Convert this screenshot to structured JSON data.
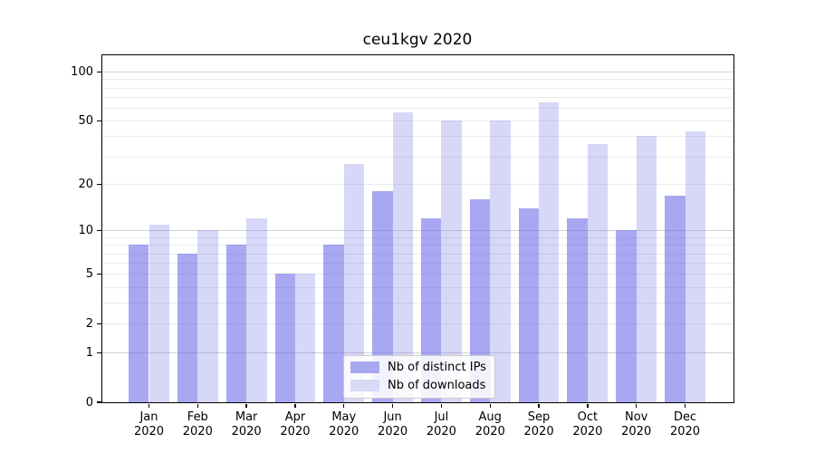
{
  "chart_data": {
    "type": "bar",
    "title": "ceu1kgv 2020",
    "categories": [
      {
        "month": "Jan",
        "year": "2020"
      },
      {
        "month": "Feb",
        "year": "2020"
      },
      {
        "month": "Mar",
        "year": "2020"
      },
      {
        "month": "Apr",
        "year": "2020"
      },
      {
        "month": "May",
        "year": "2020"
      },
      {
        "month": "Jun",
        "year": "2020"
      },
      {
        "month": "Jul",
        "year": "2020"
      },
      {
        "month": "Aug",
        "year": "2020"
      },
      {
        "month": "Sep",
        "year": "2020"
      },
      {
        "month": "Oct",
        "year": "2020"
      },
      {
        "month": "Nov",
        "year": "2020"
      },
      {
        "month": "Dec",
        "year": "2020"
      }
    ],
    "series": [
      {
        "name": "Nb of distinct IPs",
        "values": [
          8,
          7,
          8,
          5,
          8,
          18,
          12,
          16,
          14,
          12,
          10,
          17
        ],
        "bar_color": "rgba(97,97,232,0.55)",
        "legend_color": "#a8a8f0"
      },
      {
        "name": "Nb of downloads",
        "values": [
          11,
          10,
          12,
          5,
          27,
          56,
          50,
          50,
          65,
          36,
          40,
          43
        ],
        "bar_color": "rgba(97,97,222,0.25)",
        "legend_color": "#d8d8f7"
      }
    ],
    "xlabel": "",
    "ylabel": "",
    "yscale": "log1p",
    "yticks": [
      0,
      1,
      2,
      5,
      10,
      20,
      50,
      100
    ],
    "ylim": [
      0,
      127
    ],
    "grid": {
      "minor_values": [
        2,
        3,
        4,
        5,
        6,
        7,
        8,
        9,
        20,
        30,
        40,
        50,
        60,
        70,
        80,
        90
      ],
      "major_values": [
        1,
        10,
        100
      ],
      "minor_color": "#ebebeb",
      "major_color": "#d2d2d2"
    },
    "legend_position": "lower center"
  }
}
